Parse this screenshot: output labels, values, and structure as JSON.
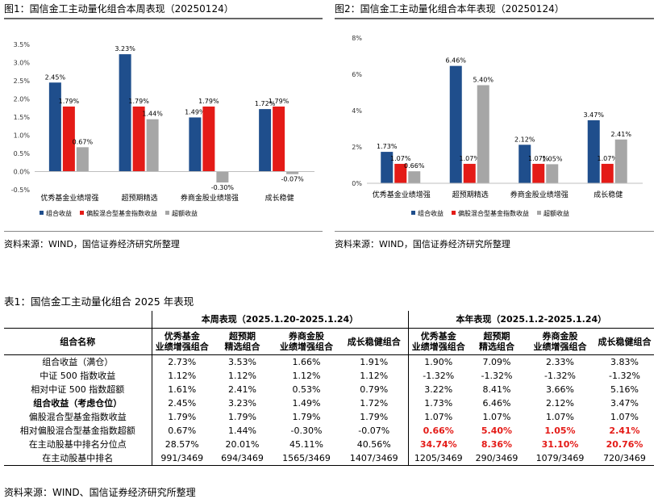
{
  "fig1": {
    "title": "图1：国信金工主动量化组合本周表现（20250124）"
  },
  "fig2": {
    "title": "图2：国信金工主动量化组合本年表现（20250124）"
  },
  "source_text": "资料来源：WIND，国信证券经济研究所整理",
  "colors": {
    "portfolio": "#1f4e8c",
    "index": "#e41b17",
    "excess": "#a6a6a6",
    "highlight": "#e41b17"
  },
  "chart_data": [
    {
      "type": "bar",
      "title": "图1：国信金工主动量化组合本周表现（20250124）",
      "categories": [
        "优秀基金业绩增强",
        "超预期精选",
        "券商金股业绩增强",
        "成长稳健"
      ],
      "series": [
        {
          "name": "组合收益",
          "values": [
            2.45,
            3.23,
            1.49,
            1.72
          ],
          "labels": [
            "2.45%",
            "3.23%",
            "1.49%",
            "1.72%"
          ]
        },
        {
          "name": "偏股混合型基金指数收益",
          "values": [
            1.79,
            1.79,
            1.79,
            1.79
          ],
          "labels": [
            "1.79%",
            "1.79%",
            "1.79%",
            "1.79%"
          ]
        },
        {
          "name": "超额收益",
          "values": [
            0.67,
            1.44,
            -0.3,
            -0.07
          ],
          "labels": [
            "0.67%",
            "1.44%",
            "-0.30%",
            "-0.07%"
          ]
        }
      ],
      "ylim": [
        -0.5,
        3.5
      ],
      "yticks": [
        -0.5,
        0.0,
        0.5,
        1.0,
        1.5,
        2.0,
        2.5,
        3.0,
        3.5
      ],
      "yticklabels": [
        "-0.5%",
        "0.0%",
        "0.5%",
        "1.0%",
        "1.5%",
        "2.0%",
        "2.5%",
        "3.0%",
        "3.5%"
      ],
      "legend": "bottom",
      "grid": false
    },
    {
      "type": "bar",
      "title": "图2：国信金工主动量化组合本年表现（20250124）",
      "categories": [
        "优秀基金业绩增强",
        "超预期精选",
        "券商金股业绩增强",
        "成长稳健"
      ],
      "series": [
        {
          "name": "组合收益",
          "values": [
            1.73,
            6.46,
            2.12,
            3.47
          ],
          "labels": [
            "1.73%",
            "6.46%",
            "2.12%",
            "3.47%"
          ]
        },
        {
          "name": "偏股混合型基金指数收益",
          "values": [
            1.07,
            1.07,
            1.07,
            1.07
          ],
          "labels": [
            "1.07%",
            "1.07%",
            "1.07%",
            "1.07%"
          ]
        },
        {
          "name": "超额收益",
          "values": [
            0.66,
            5.4,
            1.05,
            2.41
          ],
          "labels": [
            "0.66%",
            "5.40%",
            "1.05%",
            "2.41%"
          ]
        }
      ],
      "ylim": [
        0,
        8
      ],
      "yticks": [
        0,
        2,
        4,
        6,
        8
      ],
      "yticklabels": [
        "0%",
        "2%",
        "4%",
        "6%",
        "8%"
      ],
      "legend": "bottom",
      "grid": false
    }
  ],
  "table": {
    "caption": "表1：国信金工主动量化组合 2025 年表现",
    "group_headers": [
      "本周表现（2025.1.20-2025.1.24）",
      "本年表现（2025.1.2-2025.1.24）"
    ],
    "name_header": "组合名称",
    "columns": [
      [
        "优秀基金",
        "业绩增强组合"
      ],
      [
        "超预期",
        "精选组合"
      ],
      [
        "券商金股",
        "业绩增强组合"
      ],
      [
        "成长稳健组合",
        ""
      ],
      [
        "优秀基金",
        "业绩增强组合"
      ],
      [
        "超预期",
        "精选组合"
      ],
      [
        "券商金股",
        "业绩增强组合"
      ],
      [
        "成长稳健组合",
        ""
      ]
    ],
    "rows": [
      {
        "name": "组合收益（满仓）",
        "bold": false,
        "highlight": false,
        "values": [
          "2.73%",
          "3.53%",
          "1.66%",
          "1.91%",
          "1.90%",
          "7.09%",
          "2.33%",
          "3.83%"
        ]
      },
      {
        "name": "中证 500 指数收益",
        "bold": false,
        "highlight": false,
        "values": [
          "1.12%",
          "1.12%",
          "1.12%",
          "1.12%",
          "-1.32%",
          "-1.32%",
          "-1.32%",
          "-1.32%"
        ]
      },
      {
        "name": "相对中证 500 指数超额",
        "bold": false,
        "highlight": false,
        "values": [
          "1.61%",
          "2.41%",
          "0.53%",
          "0.79%",
          "3.22%",
          "8.41%",
          "3.66%",
          "5.16%"
        ]
      },
      {
        "name": "组合收益（考虑仓位）",
        "bold": true,
        "highlight": false,
        "values": [
          "2.45%",
          "3.23%",
          "1.49%",
          "1.72%",
          "1.73%",
          "6.46%",
          "2.12%",
          "3.47%"
        ]
      },
      {
        "name": "偏股混合型基金指数收益",
        "bold": false,
        "highlight": false,
        "values": [
          "1.79%",
          "1.79%",
          "1.79%",
          "1.79%",
          "1.07%",
          "1.07%",
          "1.07%",
          "1.07%"
        ]
      },
      {
        "name": "相对偏股混合型基金指数超额",
        "bold": false,
        "highlight": true,
        "values": [
          "0.67%",
          "1.44%",
          "-0.30%",
          "-0.07%",
          "0.66%",
          "5.40%",
          "1.05%",
          "2.41%"
        ]
      },
      {
        "name": "在主动股基中排名分位点",
        "bold": false,
        "highlight": true,
        "values": [
          "28.57%",
          "20.01%",
          "45.11%",
          "40.56%",
          "34.74%",
          "8.36%",
          "31.10%",
          "20.76%"
        ]
      },
      {
        "name": "在主动股基中排名",
        "bold": false,
        "highlight": false,
        "values": [
          "991/3469",
          "694/3469",
          "1565/3469",
          "1407/3469",
          "1205/3469",
          "290/3469",
          "1079/3469",
          "720/3469"
        ]
      }
    ]
  },
  "table_source": "资料来源：WIND、国信证券经济研究所整理"
}
